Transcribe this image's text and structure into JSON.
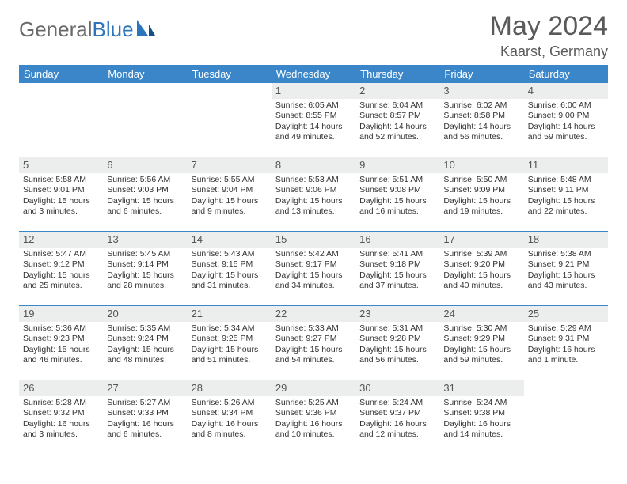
{
  "brand": {
    "part1": "General",
    "part2": "Blue"
  },
  "title": "May 2024",
  "location": "Kaarst, Germany",
  "colors": {
    "header_bg": "#3b86c8",
    "header_text": "#ffffff",
    "daynum_bg": "#eceeee",
    "border": "#3b86c8",
    "brand_gray": "#6a6a6a",
    "brand_blue": "#2d75bb"
  },
  "weekdays": [
    "Sunday",
    "Monday",
    "Tuesday",
    "Wednesday",
    "Thursday",
    "Friday",
    "Saturday"
  ],
  "weeks": [
    [
      null,
      null,
      null,
      {
        "n": "1",
        "sr": "6:05 AM",
        "ss": "8:55 PM",
        "dl": "14 hours and 49 minutes."
      },
      {
        "n": "2",
        "sr": "6:04 AM",
        "ss": "8:57 PM",
        "dl": "14 hours and 52 minutes."
      },
      {
        "n": "3",
        "sr": "6:02 AM",
        "ss": "8:58 PM",
        "dl": "14 hours and 56 minutes."
      },
      {
        "n": "4",
        "sr": "6:00 AM",
        "ss": "9:00 PM",
        "dl": "14 hours and 59 minutes."
      }
    ],
    [
      {
        "n": "5",
        "sr": "5:58 AM",
        "ss": "9:01 PM",
        "dl": "15 hours and 3 minutes."
      },
      {
        "n": "6",
        "sr": "5:56 AM",
        "ss": "9:03 PM",
        "dl": "15 hours and 6 minutes."
      },
      {
        "n": "7",
        "sr": "5:55 AM",
        "ss": "9:04 PM",
        "dl": "15 hours and 9 minutes."
      },
      {
        "n": "8",
        "sr": "5:53 AM",
        "ss": "9:06 PM",
        "dl": "15 hours and 13 minutes."
      },
      {
        "n": "9",
        "sr": "5:51 AM",
        "ss": "9:08 PM",
        "dl": "15 hours and 16 minutes."
      },
      {
        "n": "10",
        "sr": "5:50 AM",
        "ss": "9:09 PM",
        "dl": "15 hours and 19 minutes."
      },
      {
        "n": "11",
        "sr": "5:48 AM",
        "ss": "9:11 PM",
        "dl": "15 hours and 22 minutes."
      }
    ],
    [
      {
        "n": "12",
        "sr": "5:47 AM",
        "ss": "9:12 PM",
        "dl": "15 hours and 25 minutes."
      },
      {
        "n": "13",
        "sr": "5:45 AM",
        "ss": "9:14 PM",
        "dl": "15 hours and 28 minutes."
      },
      {
        "n": "14",
        "sr": "5:43 AM",
        "ss": "9:15 PM",
        "dl": "15 hours and 31 minutes."
      },
      {
        "n": "15",
        "sr": "5:42 AM",
        "ss": "9:17 PM",
        "dl": "15 hours and 34 minutes."
      },
      {
        "n": "16",
        "sr": "5:41 AM",
        "ss": "9:18 PM",
        "dl": "15 hours and 37 minutes."
      },
      {
        "n": "17",
        "sr": "5:39 AM",
        "ss": "9:20 PM",
        "dl": "15 hours and 40 minutes."
      },
      {
        "n": "18",
        "sr": "5:38 AM",
        "ss": "9:21 PM",
        "dl": "15 hours and 43 minutes."
      }
    ],
    [
      {
        "n": "19",
        "sr": "5:36 AM",
        "ss": "9:23 PM",
        "dl": "15 hours and 46 minutes."
      },
      {
        "n": "20",
        "sr": "5:35 AM",
        "ss": "9:24 PM",
        "dl": "15 hours and 48 minutes."
      },
      {
        "n": "21",
        "sr": "5:34 AM",
        "ss": "9:25 PM",
        "dl": "15 hours and 51 minutes."
      },
      {
        "n": "22",
        "sr": "5:33 AM",
        "ss": "9:27 PM",
        "dl": "15 hours and 54 minutes."
      },
      {
        "n": "23",
        "sr": "5:31 AM",
        "ss": "9:28 PM",
        "dl": "15 hours and 56 minutes."
      },
      {
        "n": "24",
        "sr": "5:30 AM",
        "ss": "9:29 PM",
        "dl": "15 hours and 59 minutes."
      },
      {
        "n": "25",
        "sr": "5:29 AM",
        "ss": "9:31 PM",
        "dl": "16 hours and 1 minute."
      }
    ],
    [
      {
        "n": "26",
        "sr": "5:28 AM",
        "ss": "9:32 PM",
        "dl": "16 hours and 3 minutes."
      },
      {
        "n": "27",
        "sr": "5:27 AM",
        "ss": "9:33 PM",
        "dl": "16 hours and 6 minutes."
      },
      {
        "n": "28",
        "sr": "5:26 AM",
        "ss": "9:34 PM",
        "dl": "16 hours and 8 minutes."
      },
      {
        "n": "29",
        "sr": "5:25 AM",
        "ss": "9:36 PM",
        "dl": "16 hours and 10 minutes."
      },
      {
        "n": "30",
        "sr": "5:24 AM",
        "ss": "9:37 PM",
        "dl": "16 hours and 12 minutes."
      },
      {
        "n": "31",
        "sr": "5:24 AM",
        "ss": "9:38 PM",
        "dl": "16 hours and 14 minutes."
      },
      null
    ]
  ],
  "labels": {
    "sunrise": "Sunrise:",
    "sunset": "Sunset:",
    "daylight": "Daylight:"
  }
}
